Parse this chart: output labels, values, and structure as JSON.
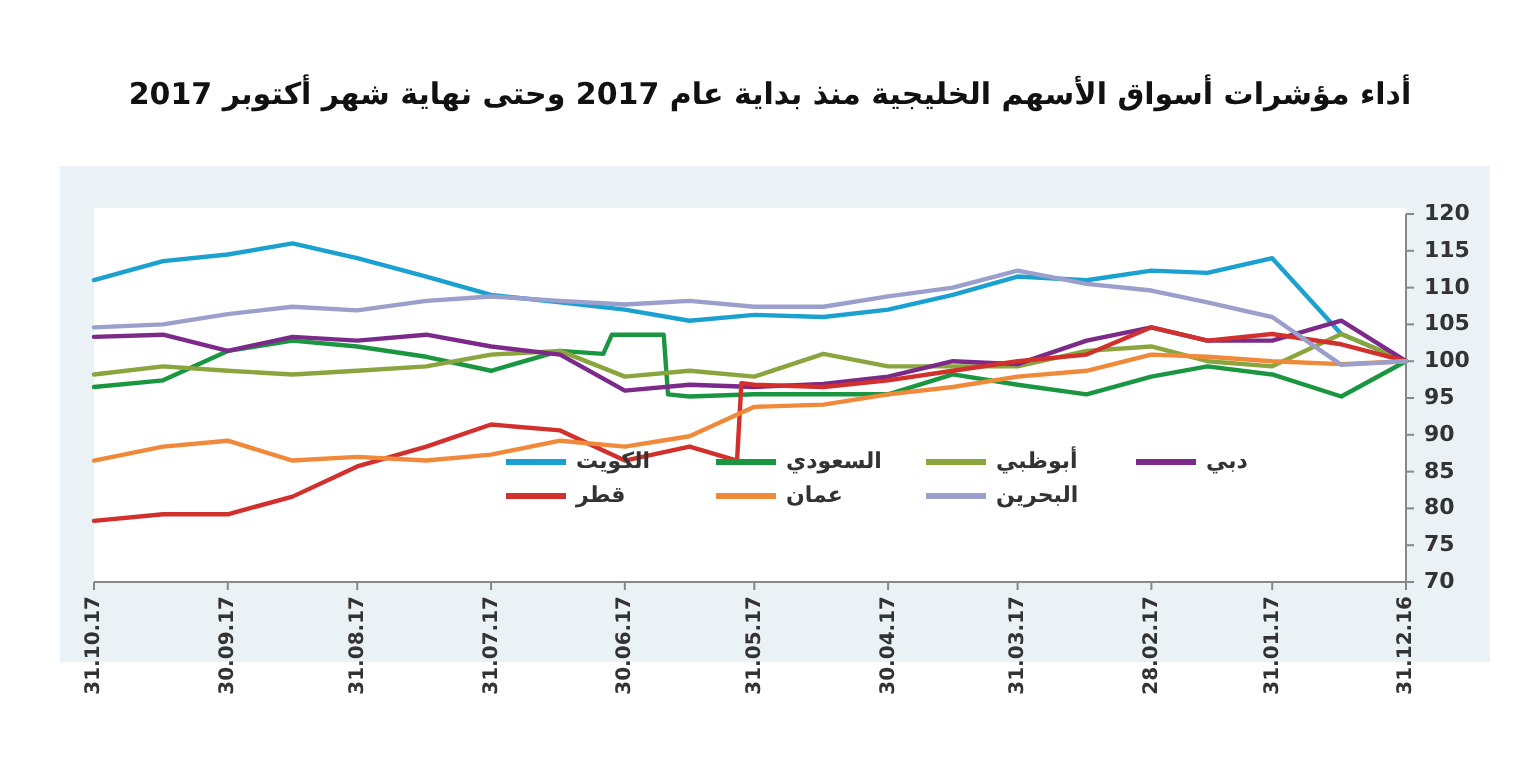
{
  "chart_data": {
    "type": "line",
    "title": "أداء مؤشرات أسواق الأسهم الخليجية منذ بداية عام 2017 وحتى نهاية شهر أكتوبر 2017",
    "x": [
      "2016-12-31",
      "2017-01-15",
      "2017-01-31",
      "2017-02-15",
      "2017-02-28",
      "2017-03-15",
      "2017-03-31",
      "2017-04-15",
      "2017-04-30",
      "2017-05-15",
      "2017-05-31",
      "2017-06-15",
      "2017-06-30",
      "2017-07-15",
      "2017-07-31",
      "2017-08-15",
      "2017-08-31",
      "2017-09-15",
      "2017-09-30",
      "2017-10-15",
      "2017-10-31"
    ],
    "series": [
      {
        "name": "الكويت",
        "color": "#1ba1d0",
        "values": [
          100,
          103.7,
          114,
          112,
          112.3,
          111,
          111.5,
          109,
          107,
          106,
          106.3,
          105.5,
          107,
          108,
          109,
          111.5,
          114,
          116,
          114.5,
          113.6,
          111
        ]
      },
      {
        "name": "السعودي",
        "color": "#1a9641",
        "x": [
          "2016-12-31",
          "2017-01-15",
          "2017-01-31",
          "2017-02-15",
          "2017-02-28",
          "2017-03-15",
          "2017-03-31",
          "2017-04-15",
          "2017-04-30",
          "2017-05-15",
          "2017-05-31",
          "2017-06-15",
          "2017-06-20",
          "2017-06-21",
          "2017-06-30",
          "2017-07-03",
          "2017-07-05",
          "2017-07-15",
          "2017-07-31",
          "2017-08-15",
          "2017-08-31",
          "2017-09-15",
          "2017-09-30",
          "2017-10-15",
          "2017-10-31"
        ],
        "values": [
          100,
          95.2,
          98.2,
          99.3,
          97.9,
          95.5,
          96.8,
          98.2,
          95.5,
          95.5,
          95.5,
          95.2,
          95.5,
          103.6,
          103.6,
          103.6,
          101,
          101.4,
          98.7,
          100.6,
          102,
          102.8,
          101.4,
          97.4,
          96.5
        ]
      },
      {
        "name": "أبوظبي",
        "color": "#8aa53e",
        "values": [
          100,
          103.7,
          99.3,
          100,
          102,
          101.4,
          99.3,
          99.3,
          99.3,
          101,
          97.9,
          98.7,
          97.9,
          101.4,
          100.9,
          99.3,
          98.7,
          98.2,
          98.7,
          99.3,
          98.2
        ]
      },
      {
        "name": "دبي",
        "color": "#7b2a8a",
        "values": [
          100,
          105.5,
          102.8,
          102.8,
          104.6,
          102.8,
          99.6,
          100,
          97.9,
          96.9,
          96.5,
          96.8,
          96,
          100.9,
          102,
          103.6,
          102.8,
          103.3,
          101.4,
          103.6,
          103.3
        ]
      },
      {
        "name": "قطر",
        "color": "#d2302c",
        "x": [
          "2016-12-31",
          "2017-01-15",
          "2017-01-31",
          "2017-02-15",
          "2017-02-28",
          "2017-03-15",
          "2017-03-31",
          "2017-04-15",
          "2017-04-30",
          "2017-05-15",
          "2017-05-31",
          "2017-06-03",
          "2017-06-04",
          "2017-06-15",
          "2017-06-30",
          "2017-07-15",
          "2017-07-31",
          "2017-08-15",
          "2017-08-31",
          "2017-09-15",
          "2017-09-30",
          "2017-10-15",
          "2017-10-31"
        ],
        "values": [
          100,
          102.3,
          103.7,
          102.8,
          104.6,
          100.9,
          100,
          98.7,
          97.4,
          96.5,
          96.8,
          97,
          86.5,
          88.4,
          86.5,
          90.6,
          91.4,
          88.4,
          85.7,
          81.6,
          79.2,
          79.2,
          78.3
        ]
      },
      {
        "name": "عمان",
        "color": "#f08a3a",
        "values": [
          100,
          99.6,
          100,
          100.6,
          100.9,
          98.7,
          97.9,
          96.5,
          95.5,
          94.1,
          93.8,
          89.8,
          88.4,
          89.2,
          87.3,
          86.5,
          87,
          86.5,
          89.2,
          88.4,
          86.5
        ]
      },
      {
        "name": "البحرين",
        "color": "#9a9fcc",
        "values": [
          100,
          99.5,
          106,
          108,
          109.6,
          110.5,
          112.3,
          110,
          108.8,
          107.4,
          107.4,
          108.2,
          107.7,
          108.2,
          108.8,
          108.2,
          106.9,
          107.4,
          106.4,
          105,
          104.6
        ]
      }
    ],
    "xlim": [
      "2017-10-31",
      "2016-12-31"
    ],
    "xticks": [
      {
        "value": "2017-10-31",
        "label": "31.10.17"
      },
      {
        "value": "2017-09-30",
        "label": "30.09.17"
      },
      {
        "value": "2017-08-31",
        "label": "31.08.17"
      },
      {
        "value": "2017-07-31",
        "label": "31.07.17"
      },
      {
        "value": "2017-06-30",
        "label": "30.06.17"
      },
      {
        "value": "2017-05-31",
        "label": "31.05.17"
      },
      {
        "value": "2017-04-30",
        "label": "30.04.17"
      },
      {
        "value": "2017-03-31",
        "label": "31.03.17"
      },
      {
        "value": "2017-02-28",
        "label": "28.02.17"
      },
      {
        "value": "2017-01-31",
        "label": "31.01.17"
      },
      {
        "value": "2016-12-31",
        "label": "31.12.16"
      }
    ],
    "ylim": [
      70,
      120
    ],
    "yticks": [
      70,
      75,
      80,
      85,
      90,
      95,
      100,
      105,
      110,
      115,
      120
    ],
    "grid": false,
    "legend": "bottom right",
    "marker": "none",
    "line_style": "solid"
  }
}
